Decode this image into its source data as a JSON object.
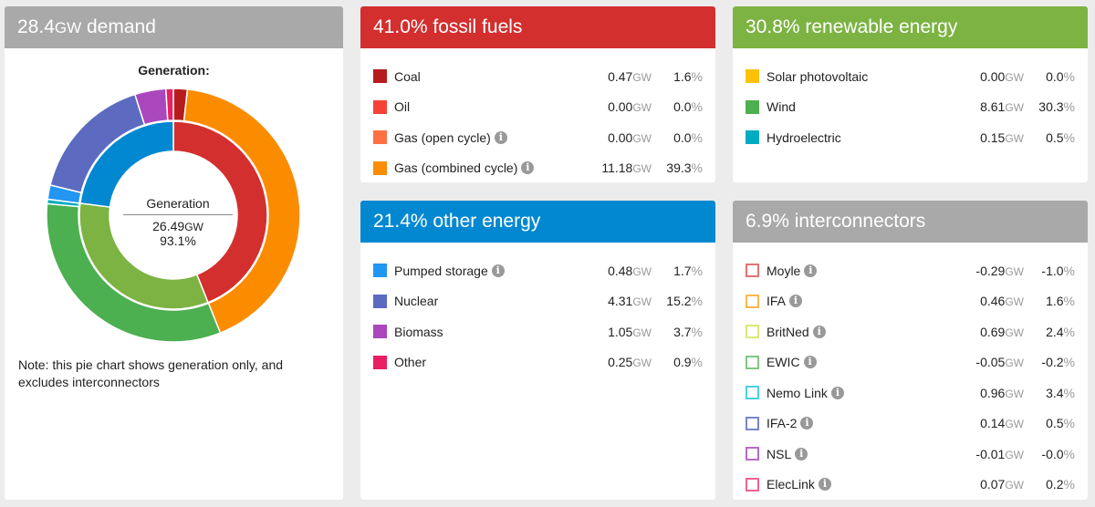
{
  "demand": {
    "value": "28.4",
    "unit": "GW",
    "label": "demand",
    "chart_title": "Generation:",
    "center_label": "Generation",
    "center_gw": "26.49",
    "center_pct": "93.1%",
    "note": "Note: this pie chart shows generation only, and excludes interconnectors",
    "color": "#a9a9a9"
  },
  "fossil": {
    "title": "41.0% fossil fuels",
    "color": "#d32f2f",
    "rows": [
      {
        "name": "Coal",
        "color": "#b71c1c",
        "gw": "0.47",
        "pct": "1.6",
        "info": false
      },
      {
        "name": "Oil",
        "color": "#f44336",
        "gw": "0.00",
        "pct": "0.0",
        "info": false
      },
      {
        "name": "Gas (open cycle)",
        "color": "#ff7043",
        "gw": "0.00",
        "pct": "0.0",
        "info": true
      },
      {
        "name": "Gas (combined cycle)",
        "color": "#fb8c00",
        "gw": "11.18",
        "pct": "39.3",
        "info": true
      }
    ]
  },
  "renewable": {
    "title": "30.8% renewable energy",
    "color": "#7cb342",
    "rows": [
      {
        "name": "Solar photovoltaic",
        "color": "#ffc107",
        "gw": "0.00",
        "pct": "0.0",
        "info": false
      },
      {
        "name": "Wind",
        "color": "#4caf50",
        "gw": "8.61",
        "pct": "30.3",
        "info": false
      },
      {
        "name": "Hydroelectric",
        "color": "#00acc1",
        "gw": "0.15",
        "pct": "0.5",
        "info": false
      }
    ]
  },
  "other": {
    "title": "21.4% other energy",
    "color": "#0288d1",
    "rows": [
      {
        "name": "Pumped storage",
        "color": "#2196f3",
        "gw": "0.48",
        "pct": "1.7",
        "info": true
      },
      {
        "name": "Nuclear",
        "color": "#5c6bc0",
        "gw": "4.31",
        "pct": "15.2",
        "info": false
      },
      {
        "name": "Biomass",
        "color": "#ab47bc",
        "gw": "1.05",
        "pct": "3.7",
        "info": false
      },
      {
        "name": "Other",
        "color": "#e91e63",
        "gw": "0.25",
        "pct": "0.9",
        "info": false
      }
    ]
  },
  "interconnectors": {
    "title": "6.9% interconnectors",
    "color": "#a9a9a9",
    "rows": [
      {
        "name": "Moyle",
        "color": "#e57373",
        "gw": "-0.29",
        "pct": "-1.0",
        "info": true,
        "outline": true
      },
      {
        "name": "IFA",
        "color": "#ffb74d",
        "gw": "0.46",
        "pct": "1.6",
        "info": true,
        "outline": true
      },
      {
        "name": "BritNed",
        "color": "#dce775",
        "gw": "0.69",
        "pct": "2.4",
        "info": true,
        "outline": true
      },
      {
        "name": "EWIC",
        "color": "#81c784",
        "gw": "-0.05",
        "pct": "-0.2",
        "info": true,
        "outline": true
      },
      {
        "name": "Nemo Link",
        "color": "#4dd0e1",
        "gw": "0.96",
        "pct": "3.4",
        "info": true,
        "outline": true
      },
      {
        "name": "IFA-2",
        "color": "#7986cb",
        "gw": "0.14",
        "pct": "0.5",
        "info": true,
        "outline": true
      },
      {
        "name": "NSL",
        "color": "#ba68c8",
        "gw": "-0.01",
        "pct": "-0.0",
        "info": true,
        "outline": true
      },
      {
        "name": "ElecLink",
        "color": "#f06292",
        "gw": "0.07",
        "pct": "0.2",
        "info": true,
        "outline": true
      }
    ]
  },
  "units": {
    "gw": "GW",
    "pct": "%"
  },
  "chart_data": {
    "type": "pie",
    "title": "Generation:",
    "inner": [
      {
        "name": "fossil fuels",
        "value": 41.0,
        "color": "#d32f2f"
      },
      {
        "name": "renewable energy",
        "value": 30.8,
        "color": "#7cb342"
      },
      {
        "name": "other energy",
        "value": 21.4,
        "color": "#0288d1"
      }
    ],
    "outer": [
      {
        "name": "Coal",
        "value": 0.47,
        "color": "#b71c1c"
      },
      {
        "name": "Oil",
        "value": 0.0,
        "color": "#f44336"
      },
      {
        "name": "Gas (open cycle)",
        "value": 0.0,
        "color": "#ff7043"
      },
      {
        "name": "Gas (combined cycle)",
        "value": 11.18,
        "color": "#fb8c00"
      },
      {
        "name": "Solar photovoltaic",
        "value": 0.0,
        "color": "#ffc107"
      },
      {
        "name": "Wind",
        "value": 8.61,
        "color": "#4caf50"
      },
      {
        "name": "Hydroelectric",
        "value": 0.15,
        "color": "#00acc1"
      },
      {
        "name": "Pumped storage",
        "value": 0.48,
        "color": "#2196f3"
      },
      {
        "name": "Nuclear",
        "value": 4.31,
        "color": "#5c6bc0"
      },
      {
        "name": "Biomass",
        "value": 1.05,
        "color": "#ab47bc"
      },
      {
        "name": "Other",
        "value": 0.25,
        "color": "#e91e63"
      }
    ]
  }
}
